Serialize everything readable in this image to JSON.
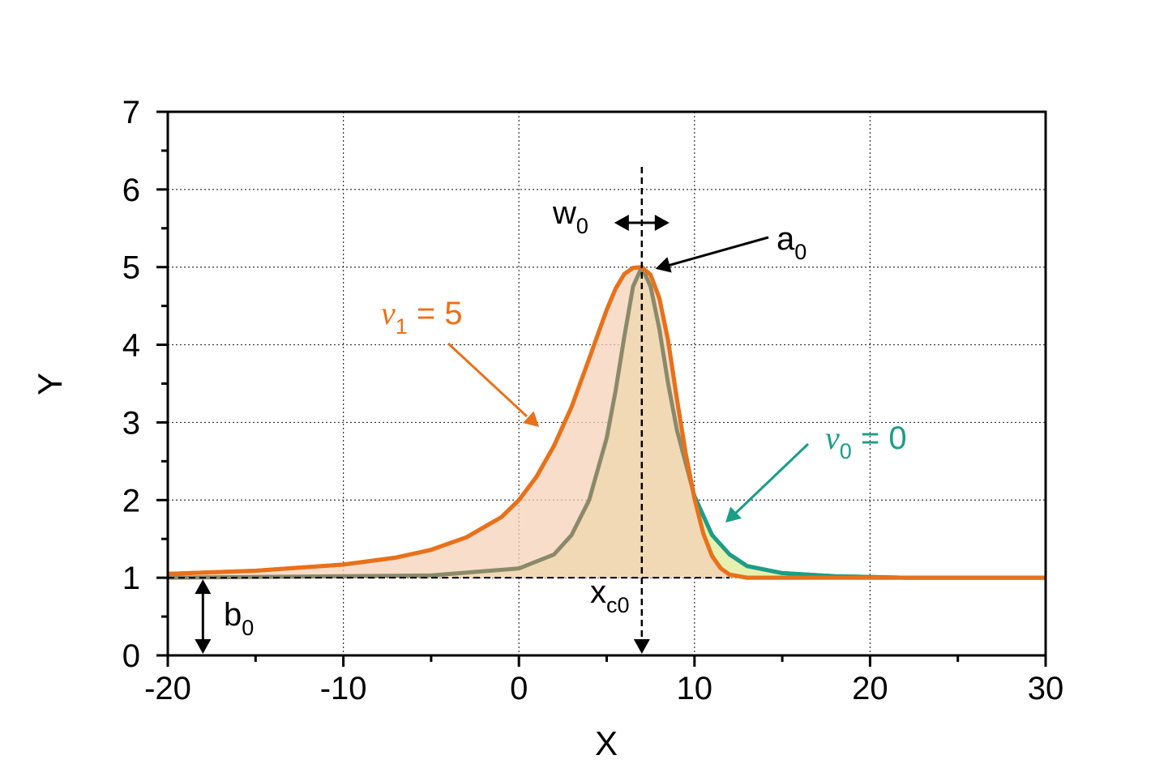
{
  "chart_data": {
    "type": "line",
    "xlabel": "X",
    "ylabel": "Y",
    "xlim": [
      -20,
      30
    ],
    "ylim": [
      0,
      7
    ],
    "x_ticks": [
      "-20",
      "-10",
      "0",
      "10",
      "20",
      "30"
    ],
    "y_ticks": [
      "0",
      "1",
      "2",
      "3",
      "4",
      "5",
      "6",
      "7"
    ],
    "grid": true,
    "parameters": {
      "a0": 5,
      "b0": 1,
      "xc0": 7,
      "w0": 1.7
    },
    "series": [
      {
        "color": "#1a9e86",
        "fill": "#e8f0b0",
        "x": [
          -20,
          -5,
          0,
          2,
          3,
          4,
          5,
          5.5,
          6,
          6.5,
          7,
          7.5,
          8,
          8.5,
          9,
          10,
          11,
          12,
          13,
          15,
          18,
          22,
          30
        ],
        "y": [
          1.0,
          1.03,
          1.12,
          1.3,
          1.55,
          2.0,
          2.8,
          3.4,
          4.1,
          4.75,
          5.0,
          4.75,
          4.2,
          3.5,
          2.9,
          2.05,
          1.55,
          1.3,
          1.15,
          1.06,
          1.02,
          1.0,
          1.0
        ]
      },
      {
        "color": "#e8711a",
        "fill": "#f6d2b8",
        "x": [
          -20,
          -15,
          -10,
          -7,
          -5,
          -3,
          -1,
          0,
          1,
          2,
          3,
          4,
          5,
          5.5,
          6,
          6.5,
          7,
          7.5,
          8,
          8.5,
          9,
          9.5,
          10,
          10.5,
          11,
          11.5,
          12,
          13,
          15,
          20,
          30
        ],
        "y": [
          1.05,
          1.09,
          1.17,
          1.26,
          1.36,
          1.52,
          1.78,
          2.0,
          2.3,
          2.7,
          3.2,
          3.82,
          4.45,
          4.72,
          4.91,
          4.99,
          5.0,
          4.9,
          4.6,
          4.05,
          3.3,
          2.6,
          2.02,
          1.57,
          1.28,
          1.12,
          1.04,
          1.0,
          1.0,
          1.0,
          1.0
        ]
      }
    ],
    "annotations": {
      "w0": {
        "main": "w",
        "sub": "0"
      },
      "a0": {
        "main": "a",
        "sub": "0"
      },
      "xc0": {
        "main": "x",
        "sub": "c0"
      },
      "b0": {
        "main": "b",
        "sub": "0"
      },
      "nu1": {
        "main": "ν",
        "sub": "1",
        "rest": " = 5",
        "color": "#e8711a"
      },
      "nu0": {
        "main": "ν",
        "sub": "0",
        "rest": " = 0",
        "color": "#1a9e86"
      }
    }
  }
}
